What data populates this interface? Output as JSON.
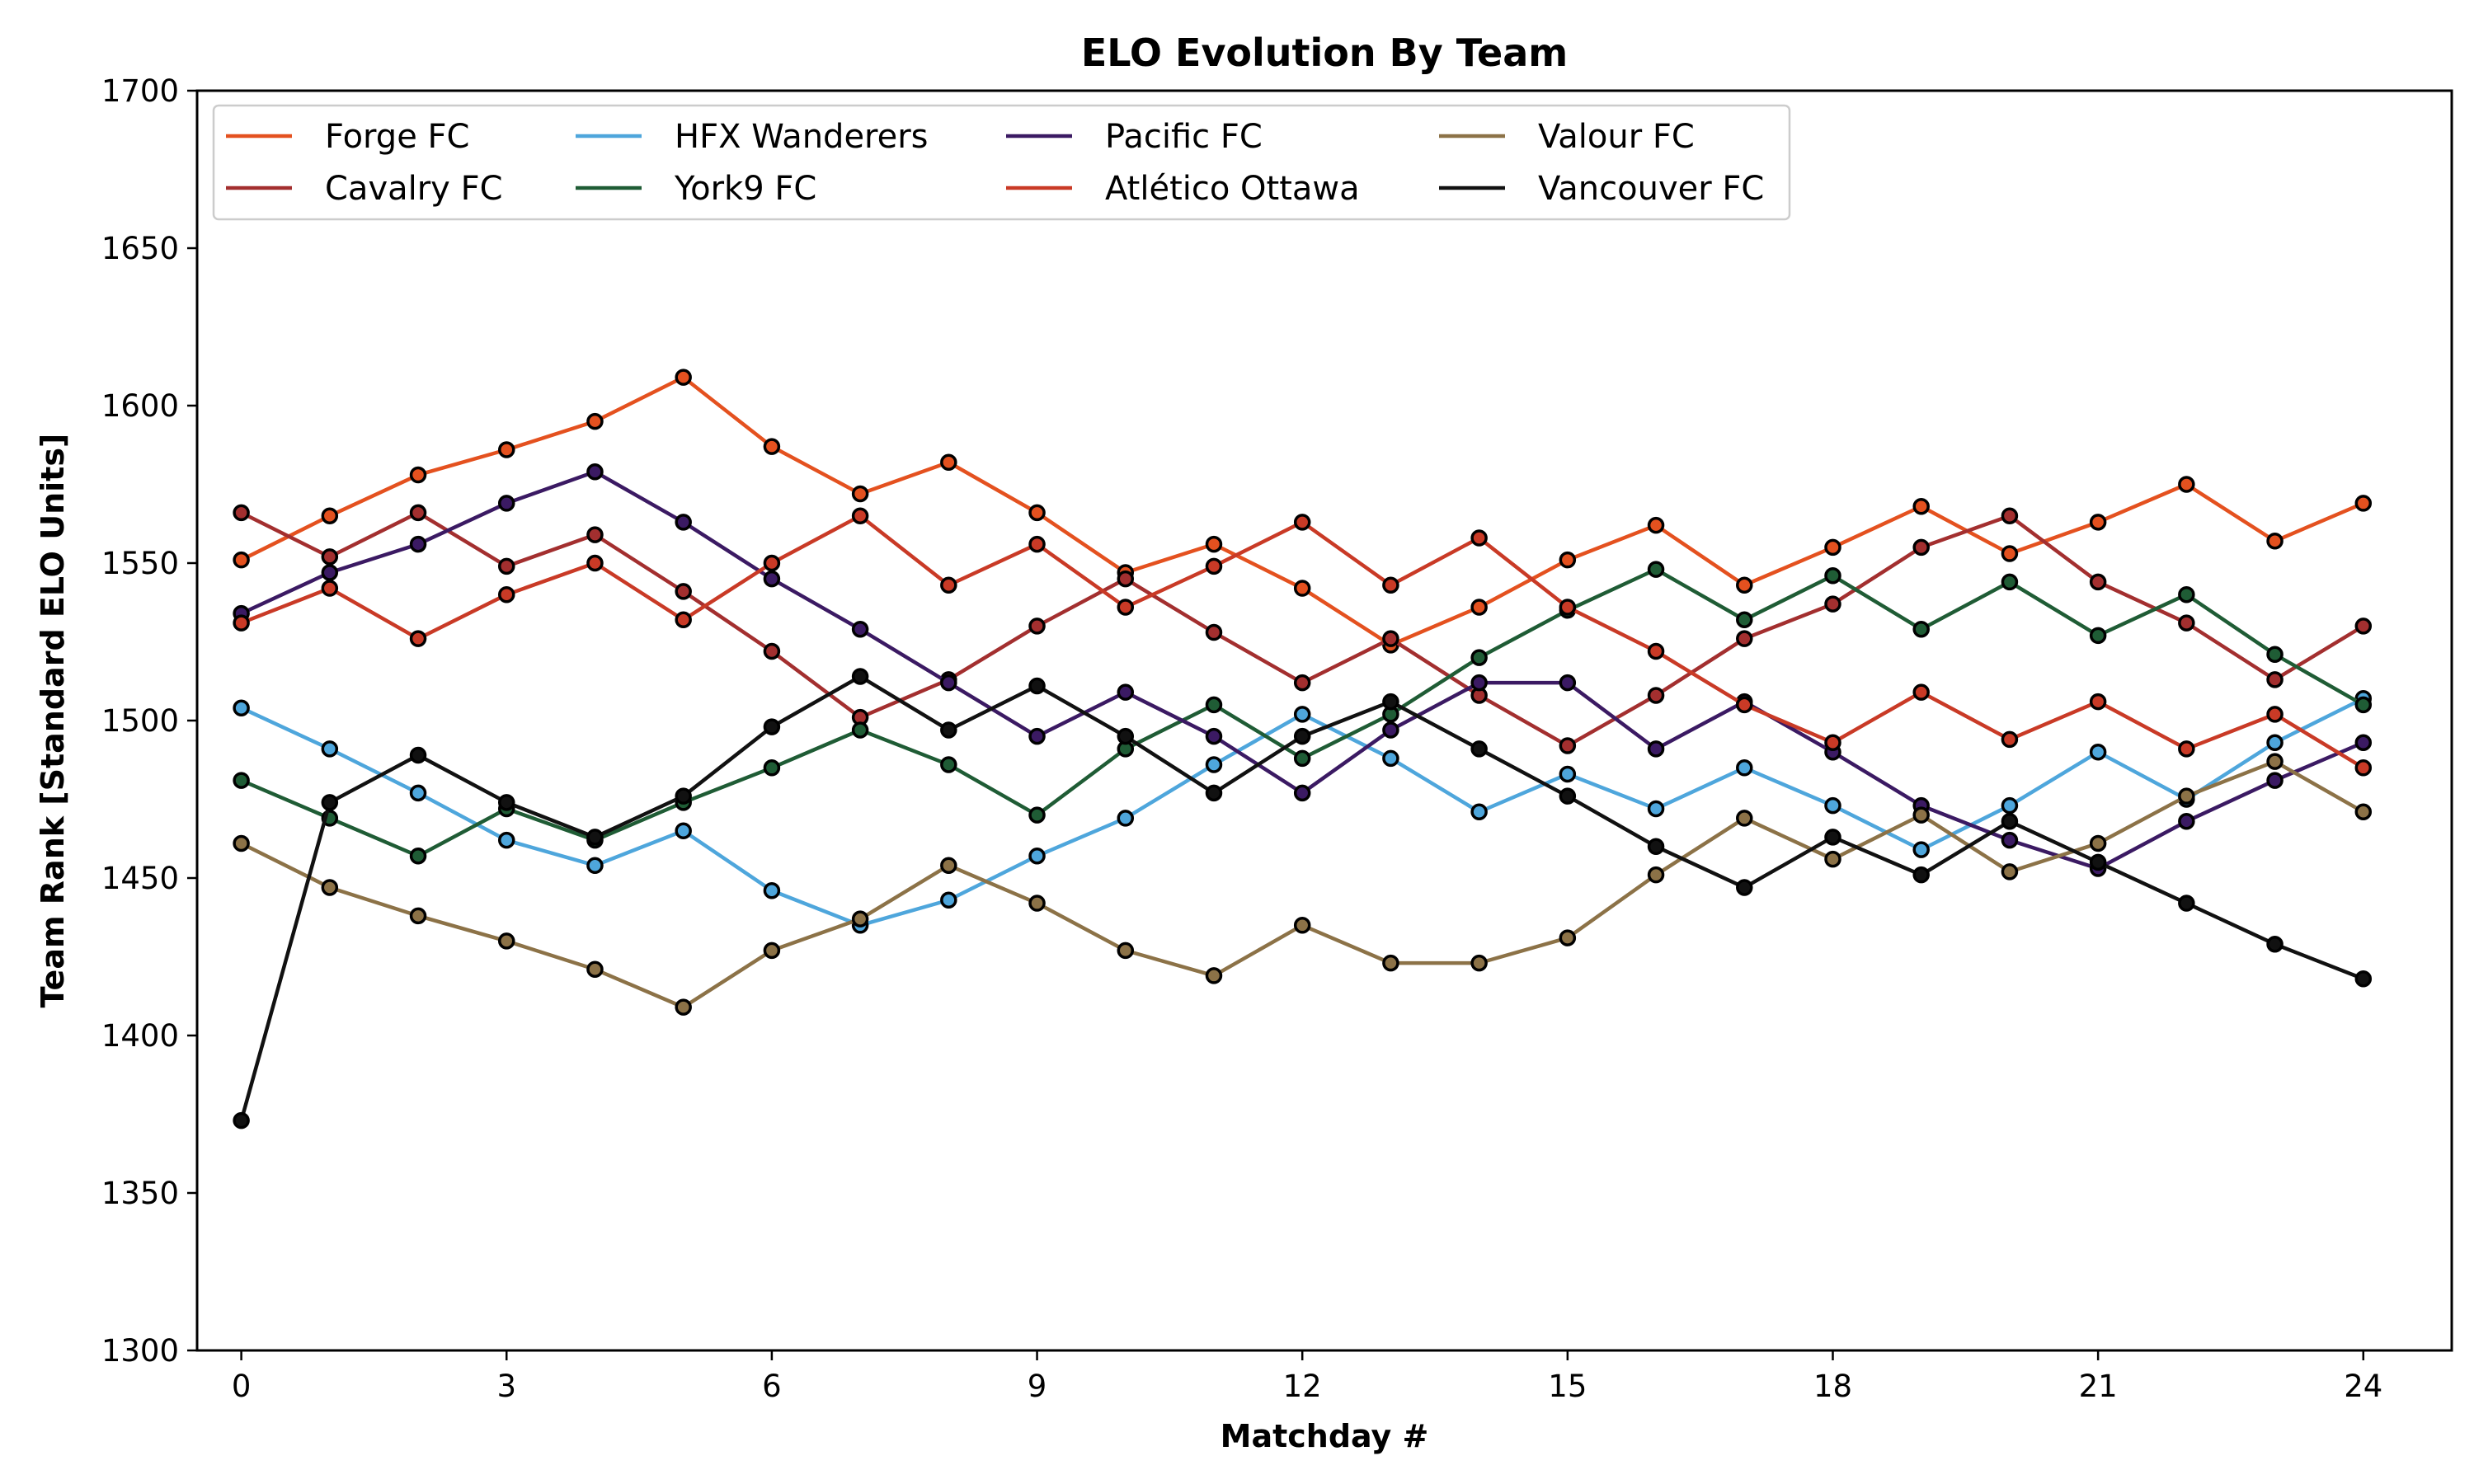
{
  "chart_data": {
    "type": "line",
    "title": "ELO Evolution By Team",
    "xlabel": "Matchday #",
    "ylabel": "Team Rank [Standard ELO Units]",
    "xlim": [
      -0.5,
      25
    ],
    "ylim": [
      1300,
      1700
    ],
    "xticks": [
      0,
      3,
      6,
      9,
      12,
      15,
      18,
      21,
      24
    ],
    "yticks": [
      1300,
      1350,
      1400,
      1450,
      1500,
      1550,
      1600,
      1650,
      1700
    ],
    "grid": false,
    "legend_position": "top-left",
    "legend_columns": 4,
    "marker": "circle",
    "marker_edge_color": "#000000",
    "x": [
      0,
      1,
      2,
      3,
      4,
      5,
      6,
      7,
      8,
      9,
      10,
      11,
      12,
      13,
      14,
      15,
      16,
      17,
      18,
      19,
      20,
      21,
      22,
      23,
      24
    ],
    "series": [
      {
        "name": "Forge FC",
        "color": "#e4511f",
        "values": [
          1551,
          1565,
          1578,
          1586,
          1595,
          1609,
          1587,
          1572,
          1582,
          1566,
          1547,
          1556,
          1542,
          1524,
          1536,
          1551,
          1562,
          1543,
          1555,
          1568,
          1553,
          1563,
          1575,
          1557,
          1569
        ]
      },
      {
        "name": "Cavalry FC",
        "color": "#a32f2f",
        "values": [
          1566,
          1552,
          1566,
          1549,
          1559,
          1541,
          1522,
          1501,
          1513,
          1530,
          1545,
          1528,
          1512,
          1526,
          1508,
          1492,
          1508,
          1526,
          1537,
          1555,
          1565,
          1544,
          1531,
          1513,
          1530
        ]
      },
      {
        "name": "HFX Wanderers",
        "color": "#4ea6dc",
        "values": [
          1504,
          1491,
          1477,
          1462,
          1454,
          1465,
          1446,
          1435,
          1443,
          1457,
          1469,
          1486,
          1502,
          1488,
          1471,
          1483,
          1472,
          1485,
          1473,
          1459,
          1473,
          1490,
          1475,
          1493,
          1507
        ]
      },
      {
        "name": "York9 FC",
        "color": "#1f5c35",
        "values": [
          1481,
          1469,
          1457,
          1472,
          1462,
          1474,
          1485,
          1497,
          1486,
          1470,
          1491,
          1505,
          1488,
          1502,
          1520,
          1535,
          1548,
          1532,
          1546,
          1529,
          1544,
          1527,
          1540,
          1521,
          1505
        ]
      },
      {
        "name": "Pacific FC",
        "color": "#3b1a63",
        "values": [
          1534,
          1547,
          1556,
          1569,
          1579,
          1563,
          1545,
          1529,
          1512,
          1495,
          1509,
          1495,
          1477,
          1497,
          1512,
          1512,
          1491,
          1506,
          1490,
          1473,
          1462,
          1453,
          1468,
          1481,
          1493
        ]
      },
      {
        "name": "Atlético Ottawa",
        "color": "#c93a26",
        "values": [
          1531,
          1542,
          1526,
          1540,
          1550,
          1532,
          1550,
          1565,
          1543,
          1556,
          1536,
          1549,
          1563,
          1543,
          1558,
          1536,
          1522,
          1505,
          1493,
          1509,
          1494,
          1506,
          1491,
          1502,
          1485
        ]
      },
      {
        "name": "Valour FC",
        "color": "#8c7247",
        "values": [
          1461,
          1447,
          1438,
          1430,
          1421,
          1409,
          1427,
          1437,
          1454,
          1442,
          1427,
          1419,
          1435,
          1423,
          1423,
          1431,
          1451,
          1469,
          1456,
          1470,
          1452,
          1461,
          1476,
          1487,
          1471
        ]
      },
      {
        "name": "Vancouver FC",
        "color": "#111111",
        "values": [
          1373,
          1474,
          1489,
          1474,
          1463,
          1476,
          1498,
          1514,
          1497,
          1511,
          1495,
          1477,
          1495,
          1506,
          1491,
          1476,
          1460,
          1447,
          1463,
          1451,
          1468,
          1455,
          1442,
          1429,
          1418
        ]
      }
    ]
  }
}
